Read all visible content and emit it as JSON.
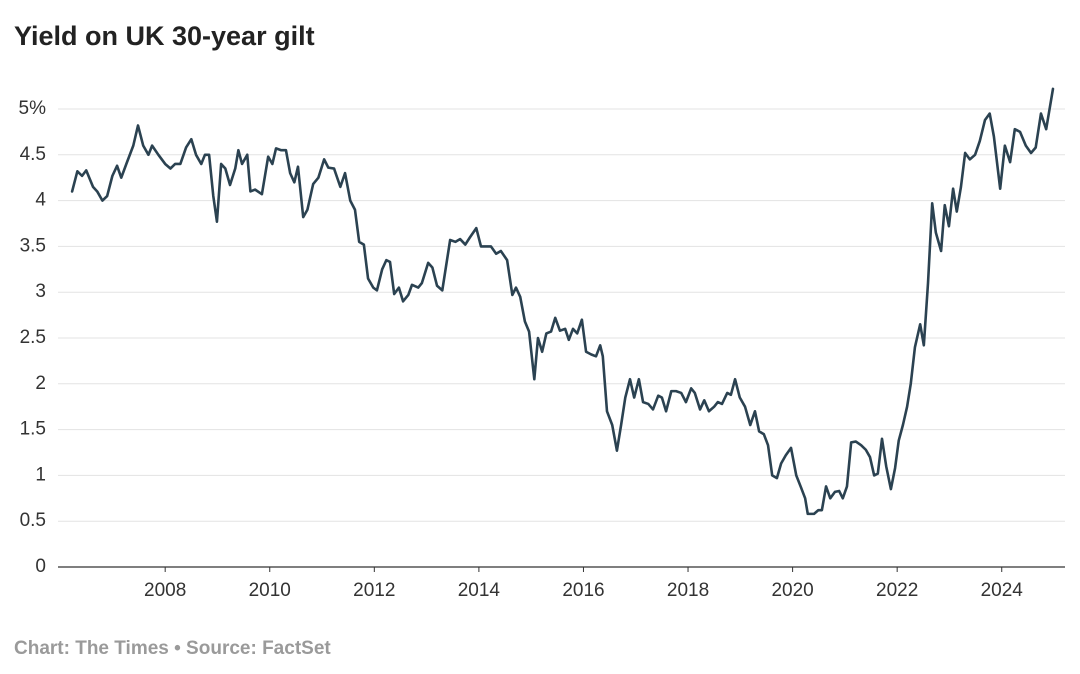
{
  "chart_data": {
    "type": "line",
    "title": "Yield on UK 30-year gilt",
    "source": "Chart: The Times • Source: FactSet",
    "xlim": [
      2005.95,
      2025.21
    ],
    "xticks": [
      2008,
      2010,
      2012,
      2014,
      2016,
      2018,
      2020,
      2022,
      2024
    ],
    "ylim": [
      0,
      5.3
    ],
    "yticks": [
      0,
      0.5,
      1,
      1.5,
      2,
      2.5,
      3,
      3.5,
      4,
      4.5,
      {
        "value": 5,
        "label": "5%"
      }
    ],
    "grid": true,
    "x": [
      2006.22,
      2006.32,
      2006.41,
      2006.49,
      2006.62,
      2006.7,
      2006.8,
      2006.89,
      2006.99,
      2007.08,
      2007.16,
      2007.27,
      2007.39,
      2007.48,
      2007.58,
      2007.68,
      2007.75,
      2007.87,
      2008.0,
      2008.1,
      2008.19,
      2008.29,
      2008.4,
      2008.5,
      2008.59,
      2008.69,
      2008.76,
      2008.84,
      2008.92,
      2008.99,
      2009.07,
      2009.15,
      2009.24,
      2009.34,
      2009.4,
      2009.47,
      2009.57,
      2009.63,
      2009.72,
      2009.85,
      2009.97,
      2010.05,
      2010.12,
      2010.22,
      2010.31,
      2010.39,
      2010.47,
      2010.54,
      2010.64,
      2010.72,
      2010.83,
      2010.93,
      2011.04,
      2011.12,
      2011.23,
      2011.35,
      2011.44,
      2011.54,
      2011.63,
      2011.71,
      2011.8,
      2011.88,
      2011.98,
      2012.05,
      2012.15,
      2012.23,
      2012.3,
      2012.38,
      2012.47,
      2012.55,
      2012.65,
      2012.72,
      2012.84,
      2012.91,
      2013.03,
      2013.11,
      2013.2,
      2013.3,
      2013.45,
      2013.55,
      2013.64,
      2013.74,
      2013.83,
      2013.95,
      2014.04,
      2014.14,
      2014.23,
      2014.33,
      2014.42,
      2014.54,
      2014.64,
      2014.71,
      2014.79,
      2014.88,
      2014.96,
      2015.06,
      2015.13,
      2015.21,
      2015.29,
      2015.38,
      2015.46,
      2015.55,
      2015.65,
      2015.72,
      2015.8,
      2015.88,
      2015.97,
      2016.05,
      2016.15,
      2016.24,
      2016.32,
      2016.37,
      2016.45,
      2016.55,
      2016.64,
      2016.72,
      2016.8,
      2016.89,
      2016.97,
      2017.06,
      2017.14,
      2017.24,
      2017.33,
      2017.43,
      2017.5,
      2017.58,
      2017.68,
      2017.77,
      2017.87,
      2017.96,
      2018.06,
      2018.13,
      2018.23,
      2018.31,
      2018.4,
      2018.5,
      2018.57,
      2018.65,
      2018.75,
      2018.82,
      2018.9,
      2018.99,
      2019.09,
      2019.19,
      2019.28,
      2019.36,
      2019.45,
      2019.53,
      2019.61,
      2019.7,
      2019.78,
      2019.87,
      2019.97,
      2020.07,
      2020.16,
      2020.24,
      2020.29,
      2020.41,
      2020.49,
      2020.56,
      2020.64,
      2020.72,
      2020.81,
      2020.89,
      2020.96,
      2021.04,
      2021.12,
      2021.21,
      2021.31,
      2021.4,
      2021.48,
      2021.56,
      2021.63,
      2021.71,
      2021.79,
      2021.88,
      2021.96,
      2022.03,
      2022.11,
      2022.19,
      2022.26,
      2022.34,
      2022.44,
      2022.51,
      2022.59,
      2022.67,
      2022.74,
      2022.84,
      2022.91,
      2022.99,
      2023.07,
      2023.14,
      2023.22,
      2023.3,
      2023.39,
      2023.49,
      2023.58,
      2023.68,
      2023.77,
      2023.85,
      2023.97,
      2024.06,
      2024.16,
      2024.25,
      2024.35,
      2024.46,
      2024.56,
      2024.65,
      2024.75,
      2024.85,
      2024.98
    ],
    "series": [
      {
        "color": "#2b4251",
        "values": [
          4.1,
          4.32,
          4.27,
          4.33,
          4.15,
          4.1,
          4.0,
          4.05,
          4.27,
          4.38,
          4.25,
          4.42,
          4.6,
          4.82,
          4.6,
          4.5,
          4.6,
          4.5,
          4.4,
          4.35,
          4.4,
          4.4,
          4.58,
          4.67,
          4.5,
          4.4,
          4.5,
          4.5,
          4.05,
          3.77,
          4.4,
          4.35,
          4.17,
          4.35,
          4.55,
          4.4,
          4.5,
          4.1,
          4.12,
          4.07,
          4.48,
          4.4,
          4.57,
          4.55,
          4.55,
          4.3,
          4.2,
          4.37,
          3.82,
          3.9,
          4.18,
          4.25,
          4.45,
          4.36,
          4.35,
          4.15,
          4.3,
          4.0,
          3.9,
          3.55,
          3.52,
          3.15,
          3.05,
          3.02,
          3.25,
          3.35,
          3.33,
          2.98,
          3.05,
          2.9,
          2.97,
          3.08,
          3.05,
          3.1,
          3.32,
          3.27,
          3.07,
          3.02,
          3.57,
          3.55,
          3.58,
          3.52,
          3.6,
          3.7,
          3.5,
          3.5,
          3.5,
          3.42,
          3.45,
          3.35,
          2.97,
          3.05,
          2.95,
          2.68,
          2.57,
          2.05,
          2.5,
          2.35,
          2.55,
          2.57,
          2.72,
          2.58,
          2.6,
          2.48,
          2.6,
          2.55,
          2.7,
          2.35,
          2.32,
          2.3,
          2.42,
          2.3,
          1.7,
          1.55,
          1.27,
          1.55,
          1.85,
          2.05,
          1.85,
          2.05,
          1.8,
          1.78,
          1.72,
          1.87,
          1.85,
          1.7,
          1.92,
          1.92,
          1.9,
          1.8,
          1.95,
          1.9,
          1.72,
          1.82,
          1.7,
          1.75,
          1.8,
          1.78,
          1.9,
          1.88,
          2.05,
          1.85,
          1.75,
          1.55,
          1.7,
          1.48,
          1.45,
          1.33,
          1.0,
          0.97,
          1.13,
          1.22,
          1.3,
          1.0,
          0.87,
          0.75,
          0.58,
          0.58,
          0.62,
          0.62,
          0.88,
          0.75,
          0.82,
          0.83,
          0.75,
          0.88,
          1.36,
          1.37,
          1.33,
          1.28,
          1.2,
          1.0,
          1.02,
          1.4,
          1.1,
          0.85,
          1.08,
          1.38,
          1.55,
          1.75,
          2.0,
          2.4,
          2.65,
          2.42,
          3.1,
          3.97,
          3.65,
          3.45,
          3.95,
          3.72,
          4.13,
          3.88,
          4.15,
          4.52,
          4.45,
          4.5,
          4.65,
          4.88,
          4.95,
          4.7,
          4.13,
          4.6,
          4.42,
          4.78,
          4.75,
          4.6,
          4.52,
          4.58,
          4.95,
          4.78,
          5.22
        ]
      }
    ]
  }
}
